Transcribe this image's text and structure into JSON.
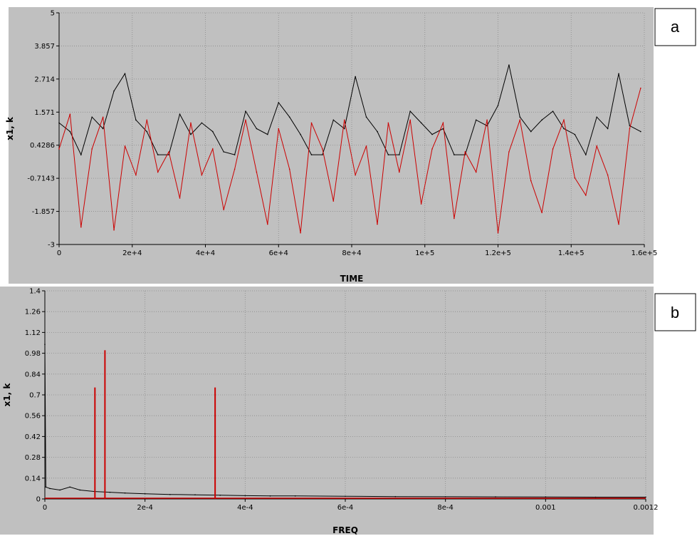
{
  "chart_data": [
    {
      "panel": "a",
      "type": "line",
      "xlabel": "TIME",
      "ylabel": "x1, k",
      "xlim": [
        0,
        160000
      ],
      "ylim": [
        -3,
        5
      ],
      "x_ticks": [
        "0",
        "2e+4",
        "4e+4",
        "6e+4",
        "8e+4",
        "1e+5",
        "1.2e+5",
        "1.4e+5",
        "1.6e+5"
      ],
      "x_tick_values": [
        0,
        20000,
        40000,
        60000,
        80000,
        100000,
        120000,
        140000,
        160000
      ],
      "y_ticks": [
        "5",
        "3.857",
        "2.714",
        "1.571",
        "0.4286",
        "-0.7143",
        "-1.857",
        "-3"
      ],
      "y_tick_values": [
        5,
        3.857,
        2.714,
        1.571,
        0.4286,
        -0.7143,
        -1.857,
        -3
      ],
      "grid": true,
      "series": [
        {
          "color": "#000000",
          "x": [
            0,
            3000,
            6000,
            9000,
            12000,
            15000,
            18000,
            21000,
            24000,
            27000,
            30000,
            33000,
            36000,
            39000,
            42000,
            45000,
            48000,
            51000,
            54000,
            57000,
            60000,
            63000,
            66000,
            69000,
            72000,
            75000,
            78000,
            81000,
            84000,
            87000,
            90000,
            93000,
            96000,
            99000,
            102000,
            105000,
            108000,
            111000,
            114000,
            117000,
            120000,
            123000,
            126000,
            129000,
            132000,
            135000,
            138000,
            141000,
            144000,
            147000,
            150000,
            153000,
            156000,
            159000
          ],
          "y": [
            1.2,
            0.9,
            0.1,
            1.4,
            1.0,
            2.3,
            2.9,
            1.3,
            0.9,
            0.1,
            0.1,
            1.5,
            0.8,
            1.2,
            0.9,
            0.2,
            0.1,
            1.6,
            1.0,
            0.8,
            1.9,
            1.4,
            0.8,
            0.1,
            0.1,
            1.3,
            1.0,
            2.8,
            1.4,
            0.9,
            0.1,
            0.1,
            1.6,
            1.2,
            0.8,
            1.0,
            0.1,
            0.1,
            1.3,
            1.1,
            1.8,
            3.2,
            1.4,
            0.9,
            1.3,
            1.6,
            1.0,
            0.8,
            0.1,
            1.4,
            1.0,
            2.9,
            1.1,
            0.9
          ]
        },
        {
          "color": "#cc0000",
          "x": [
            0,
            3000,
            6000,
            9000,
            12000,
            15000,
            18000,
            21000,
            24000,
            27000,
            30000,
            33000,
            36000,
            39000,
            42000,
            45000,
            48000,
            51000,
            54000,
            57000,
            60000,
            63000,
            66000,
            69000,
            72000,
            75000,
            78000,
            81000,
            84000,
            87000,
            90000,
            93000,
            96000,
            99000,
            102000,
            105000,
            108000,
            111000,
            114000,
            117000,
            120000,
            123000,
            126000,
            129000,
            132000,
            135000,
            138000,
            141000,
            144000,
            147000,
            150000,
            153000,
            156000,
            159000
          ],
          "y": [
            0.3,
            1.5,
            -2.4,
            0.3,
            1.4,
            -2.5,
            0.4,
            -0.6,
            1.3,
            -0.5,
            0.2,
            -1.4,
            1.2,
            -0.6,
            0.3,
            -1.8,
            -0.4,
            1.3,
            -0.5,
            -2.3,
            1.0,
            -0.4,
            -2.6,
            1.2,
            0.3,
            -1.5,
            1.3,
            -0.6,
            0.4,
            -2.3,
            1.2,
            -0.5,
            1.3,
            -1.6,
            0.3,
            1.2,
            -2.1,
            0.2,
            -0.5,
            1.3,
            -2.6,
            0.2,
            1.3,
            -0.8,
            -1.9,
            0.3,
            1.3,
            -0.7,
            -1.3,
            0.4,
            -0.6,
            -2.3,
            1.0,
            2.4
          ]
        }
      ]
    },
    {
      "panel": "b",
      "type": "line",
      "xlabel": "FREQ",
      "ylabel": "x1, k",
      "xlim": [
        0,
        0.0012
      ],
      "ylim": [
        0,
        1.4
      ],
      "x_ticks": [
        "0",
        "2e-4",
        "4e-4",
        "6e-4",
        "8e-4",
        "0.001",
        "0.0012"
      ],
      "x_tick_values": [
        0,
        0.0002,
        0.0004,
        0.0006,
        0.0008,
        0.001,
        0.0012
      ],
      "y_ticks": [
        "1.4",
        "1.26",
        "1.12",
        "0.98",
        "0.84",
        "0.7",
        "0.56",
        "0.42",
        "0.28",
        "0.14",
        "0"
      ],
      "y_tick_values": [
        1.4,
        1.26,
        1.12,
        0.98,
        0.84,
        0.7,
        0.56,
        0.42,
        0.28,
        0.14,
        0
      ],
      "grid": true,
      "series": [
        {
          "color": "#000000",
          "x": [
            0,
            2e-06,
            1e-05,
            3e-05,
            5e-05,
            7e-05,
            0.0001,
            0.00013,
            0.00016,
            0.0002,
            0.00025,
            0.0003,
            0.00035,
            0.0004,
            0.00045,
            0.0005,
            0.0006,
            0.0007,
            0.0008,
            0.0009,
            0.001,
            0.0011,
            0.0012
          ],
          "y": [
            1.04,
            0.08,
            0.07,
            0.06,
            0.08,
            0.06,
            0.05,
            0.045,
            0.04,
            0.035,
            0.03,
            0.028,
            0.025,
            0.022,
            0.02,
            0.02,
            0.018,
            0.016,
            0.015,
            0.014,
            0.013,
            0.012,
            0.012
          ]
        },
        {
          "color": "#cc0000",
          "x": [
            0.0001,
            0.00012,
            0.00034
          ],
          "y": [
            0.75,
            1.0,
            0.75
          ]
        }
      ]
    }
  ],
  "panels": {
    "a": {
      "tag": "a"
    },
    "b": {
      "tag": "b"
    }
  }
}
